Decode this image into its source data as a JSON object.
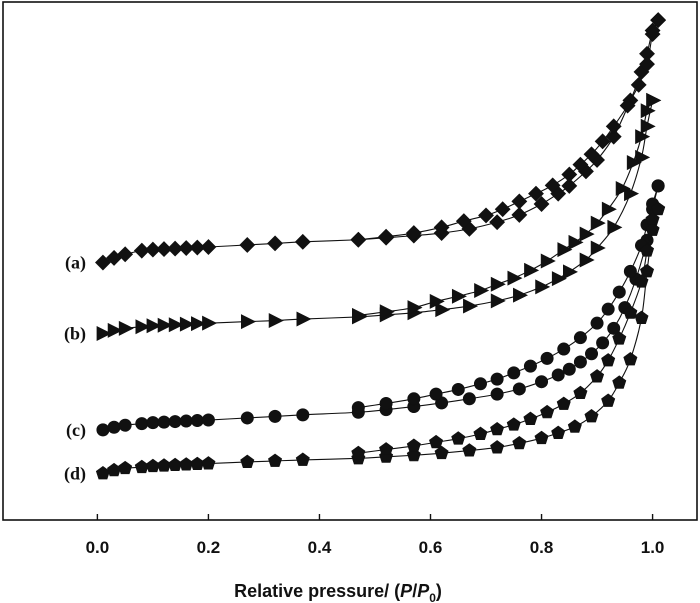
{
  "chart_data": {
    "type": "scatter",
    "title": "",
    "xlabel": {
      "prefix": "Relative pressure/ (",
      "p": "P",
      "slash": "/",
      "p0": "P",
      "sub": "0",
      "suffix": ")"
    },
    "ylabel": "",
    "xlim": [
      -0.17,
      1.08
    ],
    "ylim": [
      0,
      1
    ],
    "x_ticks": [
      "0.0",
      "0.2",
      "0.4",
      "0.6",
      "0.8",
      "1.0"
    ],
    "x_tick_values": [
      0.0,
      0.2,
      0.4,
      0.6,
      0.8,
      1.0
    ],
    "y_axis_labeled": false,
    "grid": false,
    "legend": "none",
    "series": [
      {
        "name": "(a)",
        "marker": "diamond",
        "adsorption": [
          [
            0.01,
            0.497
          ],
          [
            0.03,
            0.506
          ],
          [
            0.05,
            0.513
          ],
          [
            0.08,
            0.52
          ],
          [
            0.1,
            0.522
          ],
          [
            0.12,
            0.523
          ],
          [
            0.14,
            0.524
          ],
          [
            0.16,
            0.525
          ],
          [
            0.18,
            0.526
          ],
          [
            0.2,
            0.527
          ],
          [
            0.27,
            0.531
          ],
          [
            0.32,
            0.534
          ],
          [
            0.37,
            0.537
          ],
          [
            0.47,
            0.541
          ],
          [
            0.52,
            0.545
          ],
          [
            0.57,
            0.549
          ],
          [
            0.62,
            0.554
          ],
          [
            0.67,
            0.562
          ],
          [
            0.72,
            0.575
          ],
          [
            0.76,
            0.589
          ],
          [
            0.8,
            0.61
          ],
          [
            0.83,
            0.63
          ],
          [
            0.85,
            0.645
          ],
          [
            0.88,
            0.673
          ],
          [
            0.9,
            0.695
          ],
          [
            0.93,
            0.74
          ],
          [
            0.96,
            0.81
          ],
          [
            0.98,
            0.865
          ],
          [
            0.99,
            0.9
          ],
          [
            1.0,
            0.945
          ],
          [
            1.01,
            0.965
          ]
        ],
        "desorption": [
          [
            1.01,
            0.965
          ],
          [
            1.0,
            0.938
          ],
          [
            0.99,
            0.88
          ],
          [
            0.975,
            0.84
          ],
          [
            0.955,
            0.8
          ],
          [
            0.93,
            0.76
          ],
          [
            0.91,
            0.731
          ],
          [
            0.89,
            0.706
          ],
          [
            0.87,
            0.686
          ],
          [
            0.85,
            0.667
          ],
          [
            0.82,
            0.646
          ],
          [
            0.79,
            0.63
          ],
          [
            0.76,
            0.615
          ],
          [
            0.73,
            0.6
          ],
          [
            0.7,
            0.588
          ],
          [
            0.66,
            0.577
          ],
          [
            0.62,
            0.565
          ],
          [
            0.57,
            0.554
          ],
          [
            0.52,
            0.547
          ],
          [
            0.47,
            0.541
          ]
        ]
      },
      {
        "name": "(b)",
        "marker": "triangle-right",
        "adsorption": [
          [
            0.01,
            0.36
          ],
          [
            0.03,
            0.366
          ],
          [
            0.05,
            0.37
          ],
          [
            0.08,
            0.373
          ],
          [
            0.1,
            0.375
          ],
          [
            0.12,
            0.376
          ],
          [
            0.14,
            0.377
          ],
          [
            0.16,
            0.378
          ],
          [
            0.18,
            0.379
          ],
          [
            0.2,
            0.38
          ],
          [
            0.27,
            0.383
          ],
          [
            0.32,
            0.385
          ],
          [
            0.37,
            0.388
          ],
          [
            0.47,
            0.392
          ],
          [
            0.52,
            0.396
          ],
          [
            0.57,
            0.4
          ],
          [
            0.62,
            0.406
          ],
          [
            0.67,
            0.413
          ],
          [
            0.72,
            0.423
          ],
          [
            0.76,
            0.434
          ],
          [
            0.8,
            0.45
          ],
          [
            0.83,
            0.466
          ],
          [
            0.85,
            0.479
          ],
          [
            0.88,
            0.502
          ],
          [
            0.9,
            0.525
          ],
          [
            0.93,
            0.565
          ],
          [
            0.96,
            0.63
          ],
          [
            0.98,
            0.7
          ],
          [
            0.99,
            0.76
          ],
          [
            1.0,
            0.81
          ]
        ],
        "desorption": [
          [
            1.0,
            0.81
          ],
          [
            0.99,
            0.79
          ],
          [
            0.98,
            0.74
          ],
          [
            0.965,
            0.69
          ],
          [
            0.945,
            0.64
          ],
          [
            0.92,
            0.6
          ],
          [
            0.9,
            0.573
          ],
          [
            0.88,
            0.552
          ],
          [
            0.86,
            0.536
          ],
          [
            0.84,
            0.522
          ],
          [
            0.81,
            0.5
          ],
          [
            0.78,
            0.482
          ],
          [
            0.75,
            0.467
          ],
          [
            0.72,
            0.455
          ],
          [
            0.69,
            0.443
          ],
          [
            0.65,
            0.432
          ],
          [
            0.61,
            0.422
          ],
          [
            0.57,
            0.41
          ],
          [
            0.52,
            0.402
          ],
          [
            0.47,
            0.395
          ]
        ]
      },
      {
        "name": "(c)",
        "marker": "circle",
        "adsorption": [
          [
            0.01,
            0.174
          ],
          [
            0.03,
            0.179
          ],
          [
            0.05,
            0.183
          ],
          [
            0.08,
            0.186
          ],
          [
            0.1,
            0.188
          ],
          [
            0.12,
            0.189
          ],
          [
            0.14,
            0.19
          ],
          [
            0.16,
            0.191
          ],
          [
            0.18,
            0.192
          ],
          [
            0.2,
            0.193
          ],
          [
            0.27,
            0.197
          ],
          [
            0.32,
            0.2
          ],
          [
            0.37,
            0.203
          ],
          [
            0.47,
            0.208
          ],
          [
            0.52,
            0.213
          ],
          [
            0.57,
            0.219
          ],
          [
            0.62,
            0.226
          ],
          [
            0.67,
            0.234
          ],
          [
            0.72,
            0.243
          ],
          [
            0.76,
            0.253
          ],
          [
            0.8,
            0.267
          ],
          [
            0.83,
            0.28
          ],
          [
            0.85,
            0.291
          ],
          [
            0.87,
            0.305
          ],
          [
            0.89,
            0.321
          ],
          [
            0.91,
            0.342
          ],
          [
            0.93,
            0.37
          ],
          [
            0.95,
            0.41
          ],
          [
            0.97,
            0.465
          ],
          [
            0.99,
            0.54
          ],
          [
            1.0,
            0.6
          ],
          [
            1.01,
            0.645
          ]
        ],
        "desorption": [
          [
            1.01,
            0.645
          ],
          [
            1.0,
            0.61
          ],
          [
            0.99,
            0.57
          ],
          [
            0.98,
            0.53
          ],
          [
            0.96,
            0.48
          ],
          [
            0.94,
            0.44
          ],
          [
            0.92,
            0.407
          ],
          [
            0.9,
            0.38
          ],
          [
            0.87,
            0.352
          ],
          [
            0.84,
            0.33
          ],
          [
            0.81,
            0.312
          ],
          [
            0.78,
            0.297
          ],
          [
            0.75,
            0.284
          ],
          [
            0.72,
            0.272
          ],
          [
            0.69,
            0.263
          ],
          [
            0.65,
            0.252
          ],
          [
            0.61,
            0.243
          ],
          [
            0.57,
            0.234
          ],
          [
            0.52,
            0.225
          ],
          [
            0.47,
            0.217
          ]
        ]
      },
      {
        "name": "(d)",
        "marker": "pentagon",
        "adsorption": [
          [
            0.01,
            0.09
          ],
          [
            0.03,
            0.096
          ],
          [
            0.05,
            0.1
          ],
          [
            0.08,
            0.102
          ],
          [
            0.1,
            0.104
          ],
          [
            0.12,
            0.105
          ],
          [
            0.14,
            0.106
          ],
          [
            0.16,
            0.107
          ],
          [
            0.18,
            0.108
          ],
          [
            0.2,
            0.109
          ],
          [
            0.27,
            0.112
          ],
          [
            0.32,
            0.114
          ],
          [
            0.37,
            0.116
          ],
          [
            0.47,
            0.119
          ],
          [
            0.52,
            0.122
          ],
          [
            0.57,
            0.125
          ],
          [
            0.62,
            0.129
          ],
          [
            0.67,
            0.134
          ],
          [
            0.72,
            0.14
          ],
          [
            0.76,
            0.148
          ],
          [
            0.8,
            0.158
          ],
          [
            0.83,
            0.168
          ],
          [
            0.86,
            0.18
          ],
          [
            0.89,
            0.2
          ],
          [
            0.92,
            0.23
          ],
          [
            0.94,
            0.265
          ],
          [
            0.96,
            0.31
          ],
          [
            0.98,
            0.39
          ],
          [
            0.99,
            0.48
          ],
          [
            1.0,
            0.56
          ],
          [
            1.01,
            0.6
          ]
        ],
        "desorption": [
          [
            1.01,
            0.6
          ],
          [
            1.0,
            0.58
          ],
          [
            0.99,
            0.52
          ],
          [
            0.98,
            0.46
          ],
          [
            0.96,
            0.4
          ],
          [
            0.94,
            0.35
          ],
          [
            0.92,
            0.308
          ],
          [
            0.9,
            0.277
          ],
          [
            0.87,
            0.245
          ],
          [
            0.84,
            0.224
          ],
          [
            0.81,
            0.208
          ],
          [
            0.78,
            0.195
          ],
          [
            0.75,
            0.184
          ],
          [
            0.72,
            0.175
          ],
          [
            0.69,
            0.166
          ],
          [
            0.65,
            0.157
          ],
          [
            0.61,
            0.15
          ],
          [
            0.57,
            0.143
          ],
          [
            0.52,
            0.136
          ],
          [
            0.47,
            0.129
          ]
        ]
      }
    ]
  }
}
